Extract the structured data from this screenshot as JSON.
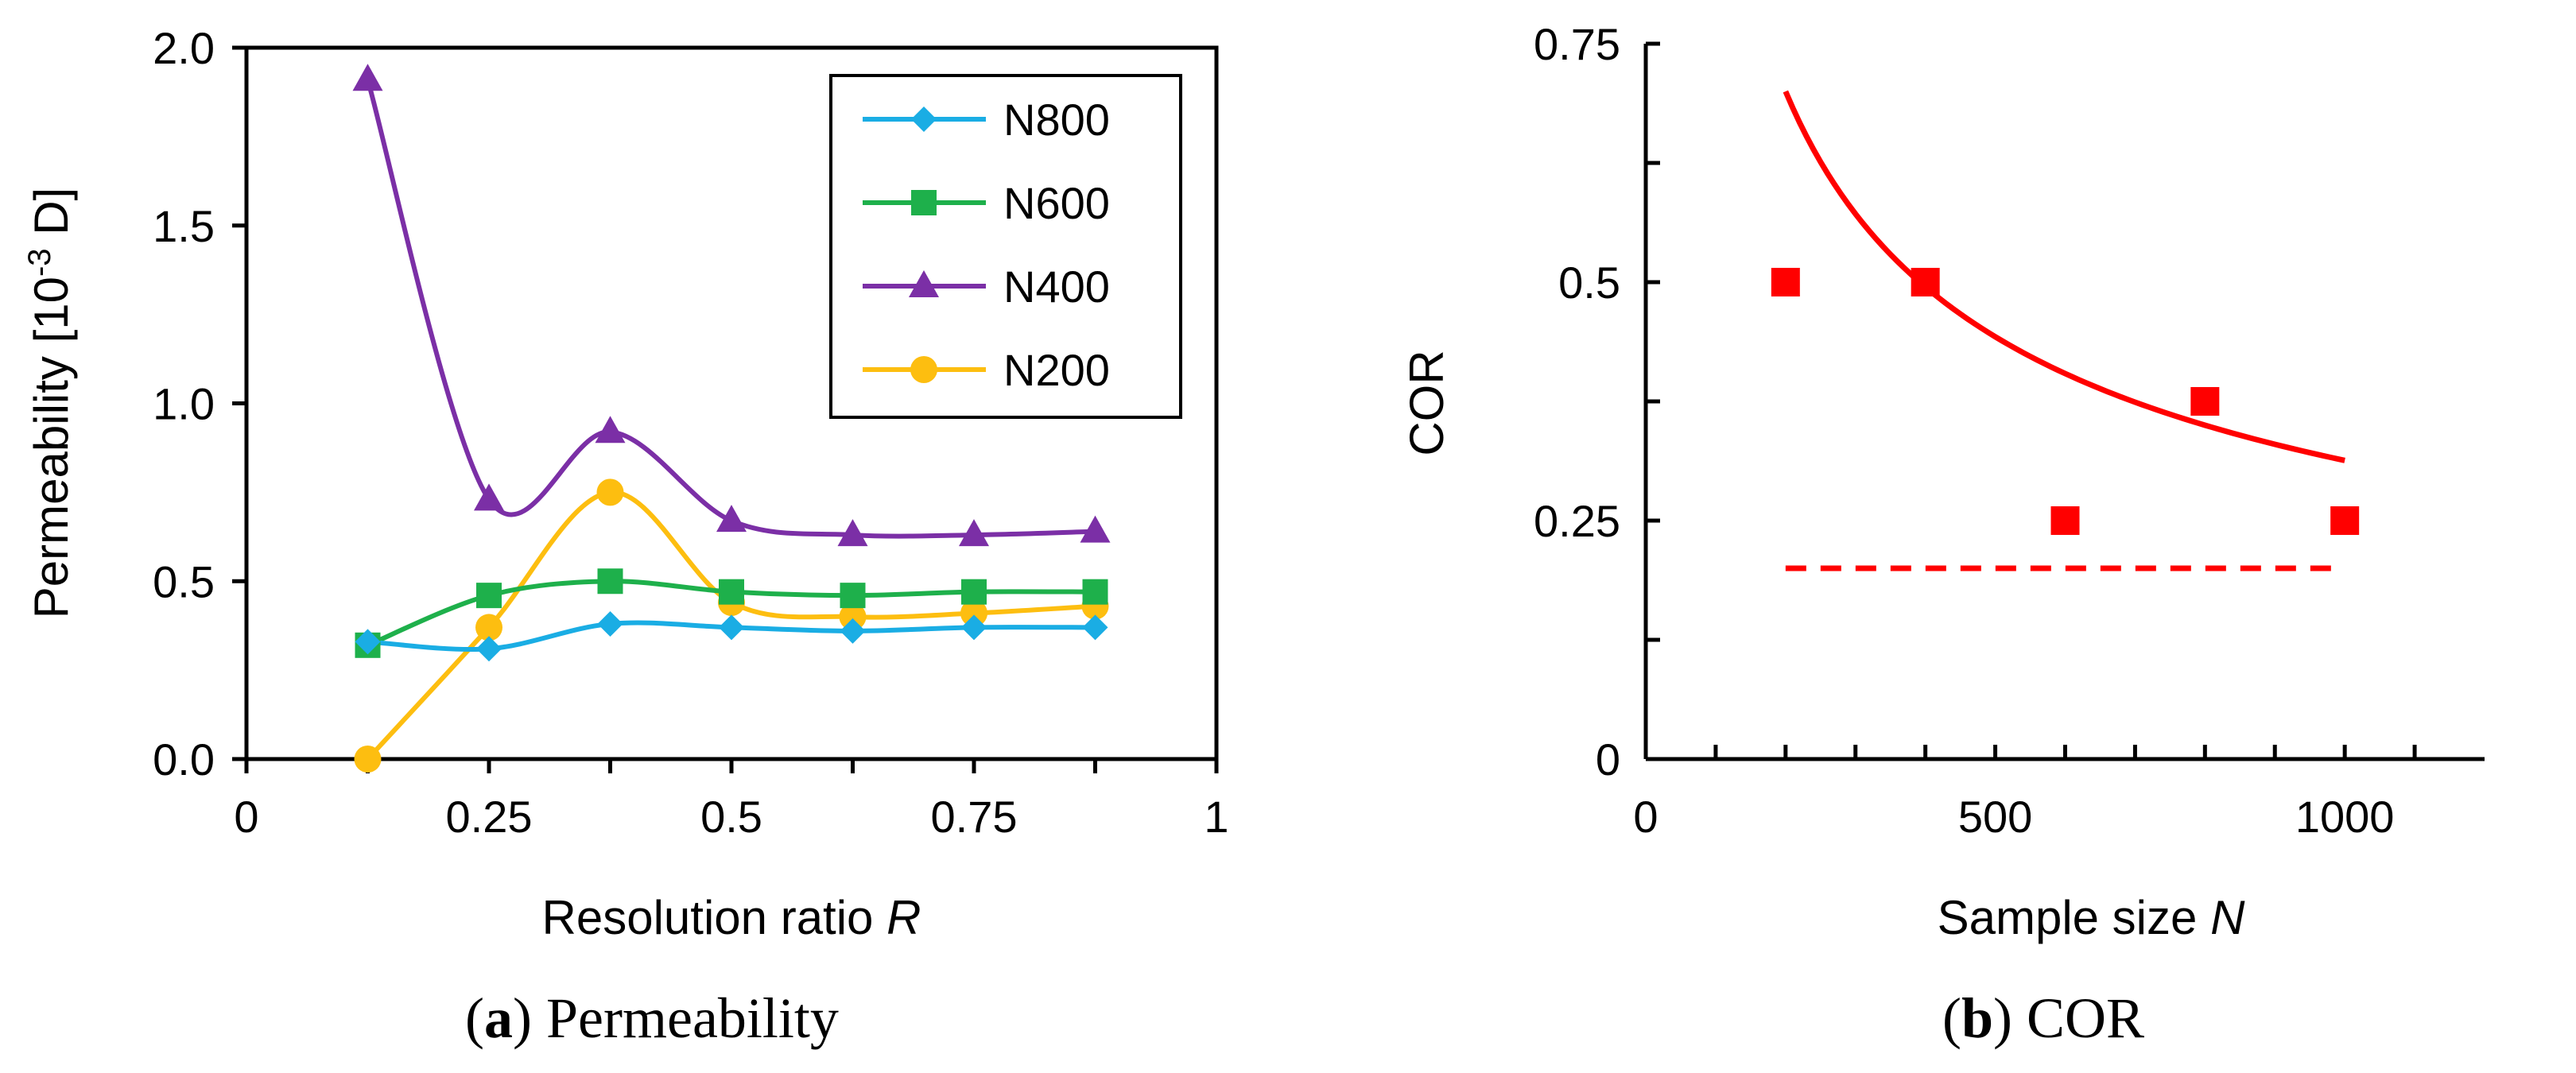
{
  "chart_data": [
    {
      "id": "a",
      "type": "line",
      "caption_label": "a",
      "caption_text": "Permeability",
      "xlabel": "Resolution ratio",
      "xlabel_var": "R",
      "ylabel": "Permeability [10",
      "ylabel_sup": "-3",
      "ylabel_unit": " D]",
      "xlim": [
        0,
        1
      ],
      "ylim": [
        0,
        2
      ],
      "xticks": [
        0,
        0.25,
        0.5,
        0.75,
        1
      ],
      "xtick_labels": [
        "0",
        "0.25",
        "0.5",
        "0.75",
        "1"
      ],
      "xticks_minor": [
        0.125,
        0.375,
        0.625,
        0.875
      ],
      "yticks": [
        0,
        0.5,
        1.0,
        1.5,
        2.0
      ],
      "ytick_labels": [
        "0.0",
        "0.5",
        "1.0",
        "1.5",
        "2.0"
      ],
      "legend_position": "top-right",
      "x": [
        0.125,
        0.25,
        0.375,
        0.5,
        0.625,
        0.75,
        0.875
      ],
      "series": [
        {
          "name": "N800",
          "color": "#1AADE4",
          "marker": "diamond",
          "values": [
            0.33,
            0.31,
            0.38,
            0.37,
            0.36,
            0.37,
            0.37
          ]
        },
        {
          "name": "N600",
          "color": "#1EB04B",
          "marker": "square",
          "values": [
            0.32,
            0.46,
            0.5,
            0.47,
            0.46,
            0.47,
            0.47
          ]
        },
        {
          "name": "N400",
          "color": "#7B2FA6",
          "marker": "triangle",
          "values": [
            1.91,
            0.73,
            0.92,
            0.67,
            0.63,
            0.63,
            0.64
          ]
        },
        {
          "name": "N200",
          "color": "#FDBE10",
          "marker": "circle",
          "values": [
            0.0,
            0.37,
            0.75,
            0.44,
            0.4,
            0.41,
            0.43
          ]
        }
      ]
    },
    {
      "id": "b",
      "type": "scatter",
      "caption_label": "b",
      "caption_text": "COR",
      "xlabel": "Sample size",
      "xlabel_var": "N",
      "ylabel": "COR",
      "xlim": [
        0,
        1200
      ],
      "ylim": [
        0,
        0.75
      ],
      "xticks": [
        0,
        500,
        1000
      ],
      "xtick_labels": [
        "0",
        "500",
        "1000"
      ],
      "xticks_minor": [
        100,
        200,
        300,
        400,
        600,
        700,
        800,
        900,
        1100
      ],
      "yticks": [
        0,
        0.25,
        0.5,
        0.75
      ],
      "ytick_labels": [
        "0",
        "0.25",
        "0.5",
        "0.75"
      ],
      "yticks_minor": [
        0.125,
        0.375,
        0.625
      ],
      "color": "#FF0000",
      "points": {
        "x": [
          200,
          400,
          600,
          800,
          1000
        ],
        "y": [
          0.5,
          0.5,
          0.25,
          0.375,
          0.25
        ]
      },
      "fit_curve": {
        "form": "a/sqrt(N)",
        "a": 9.9,
        "x_range": [
          200,
          1000
        ]
      },
      "reference_line": {
        "y": 0.2,
        "x_range": [
          200,
          1000
        ],
        "style": "dashed"
      }
    }
  ]
}
